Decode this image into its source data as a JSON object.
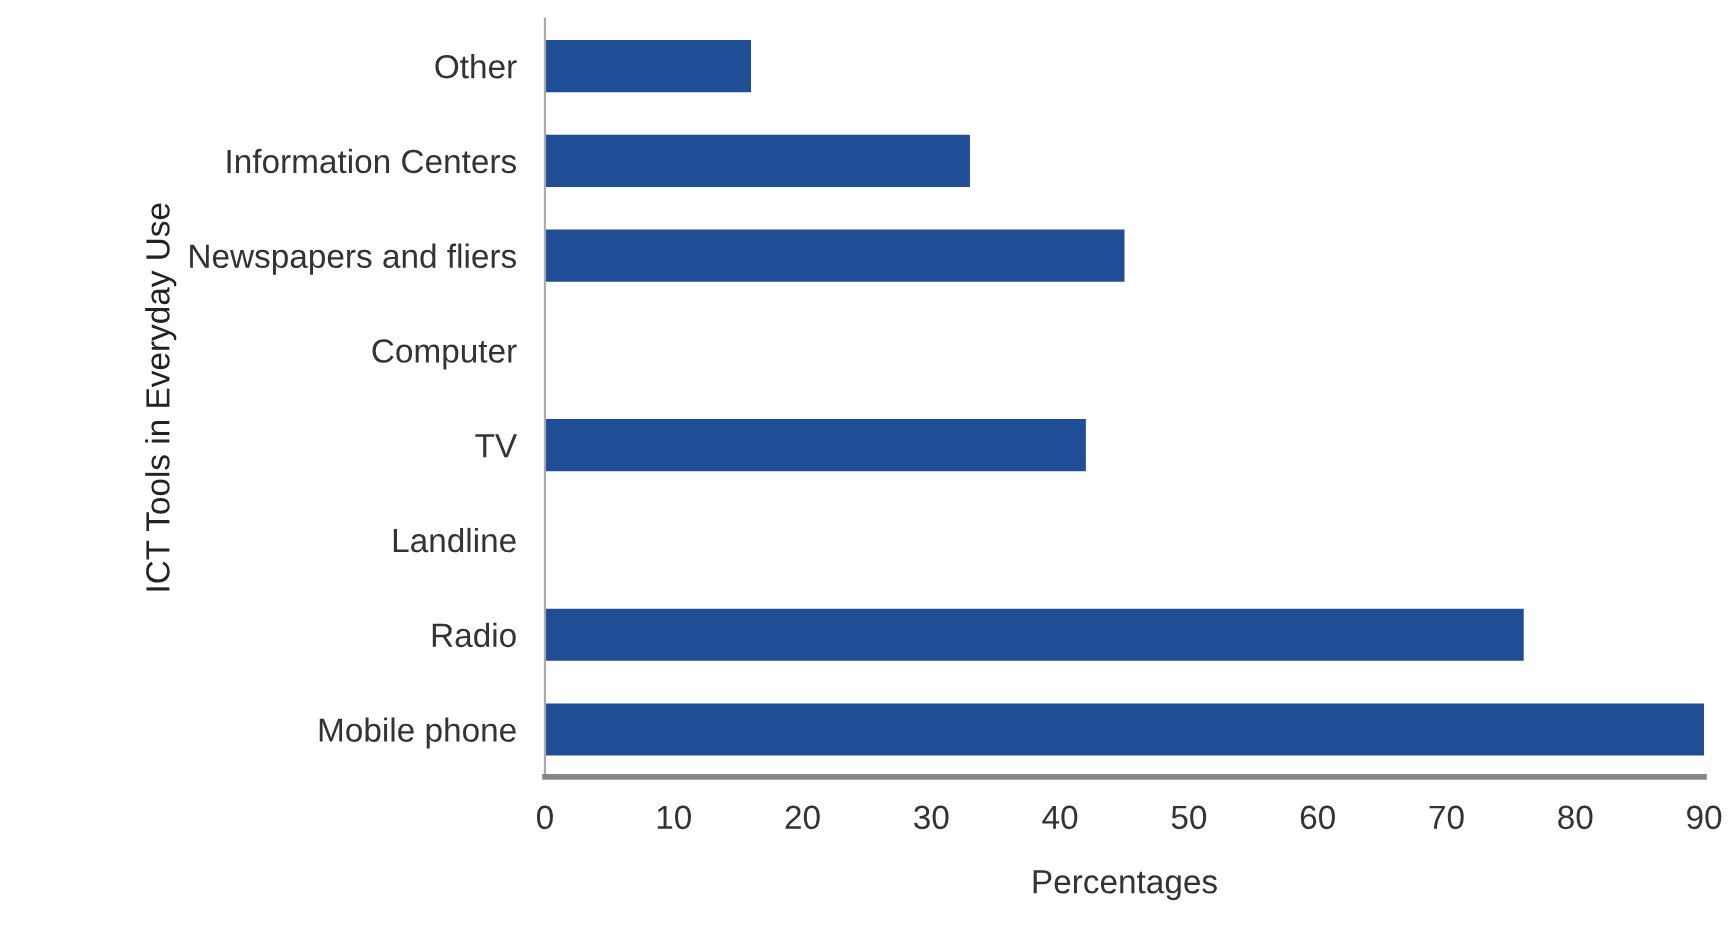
{
  "chart_data": {
    "type": "bar",
    "orientation": "horizontal",
    "xlabel": "Percentages",
    "ylabel": "ICT Tools in Everyday Use",
    "categories": [
      "Other",
      "Information Centers",
      "Newspapers and fliers",
      "Computer",
      "TV",
      "Landline",
      "Radio",
      "Mobile phone"
    ],
    "values": [
      16,
      33,
      45,
      0,
      42,
      0,
      76,
      90
    ],
    "color": "#1f4e96",
    "xlim": [
      0,
      90
    ],
    "xticks": [
      0,
      10,
      20,
      30,
      40,
      50,
      60,
      70,
      80,
      90
    ],
    "grid": false,
    "legend": false
  }
}
